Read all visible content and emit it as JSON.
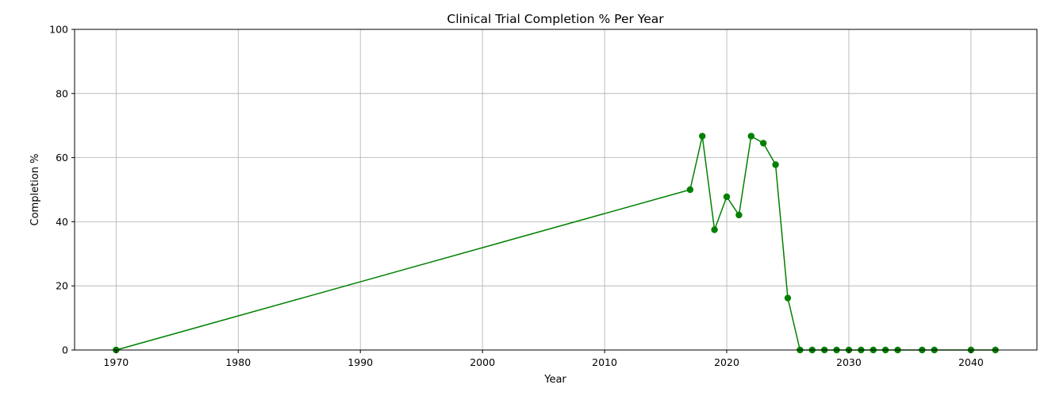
{
  "chart_data": {
    "type": "line",
    "title": "Clinical Trial Completion % Per Year",
    "xlabel": "Year",
    "ylabel": "Completion %",
    "xlim": [
      1966.6,
      2045.4
    ],
    "ylim": [
      0,
      100
    ],
    "xticks": [
      1970,
      1980,
      1990,
      2000,
      2010,
      2020,
      2030,
      2040
    ],
    "yticks": [
      0,
      20,
      40,
      60,
      80,
      100
    ],
    "grid": true,
    "legend": "none",
    "colors": {
      "line": "#008000",
      "marker": "#008000",
      "grid": "#b0b0b0",
      "axis": "#000000"
    },
    "series": [
      {
        "marker": "circle",
        "points": [
          {
            "x": 1970,
            "y": 0
          },
          {
            "x": 2017,
            "y": 50
          },
          {
            "x": 2018,
            "y": 66.7
          },
          {
            "x": 2019,
            "y": 37.5
          },
          {
            "x": 2020,
            "y": 47.8
          },
          {
            "x": 2021,
            "y": 42.1
          },
          {
            "x": 2022,
            "y": 66.7
          },
          {
            "x": 2023,
            "y": 64.5
          },
          {
            "x": 2024,
            "y": 57.8
          },
          {
            "x": 2025,
            "y": 16.2
          },
          {
            "x": 2026,
            "y": 0
          },
          {
            "x": 2027,
            "y": 0
          },
          {
            "x": 2028,
            "y": 0
          },
          {
            "x": 2029,
            "y": 0
          },
          {
            "x": 2030,
            "y": 0
          },
          {
            "x": 2031,
            "y": 0
          },
          {
            "x": 2032,
            "y": 0
          },
          {
            "x": 2033,
            "y": 0
          },
          {
            "x": 2034,
            "y": 0
          },
          {
            "x": 2036,
            "y": 0
          },
          {
            "x": 2037,
            "y": 0
          },
          {
            "x": 2040,
            "y": 0
          },
          {
            "x": 2042,
            "y": 0
          }
        ]
      }
    ]
  }
}
